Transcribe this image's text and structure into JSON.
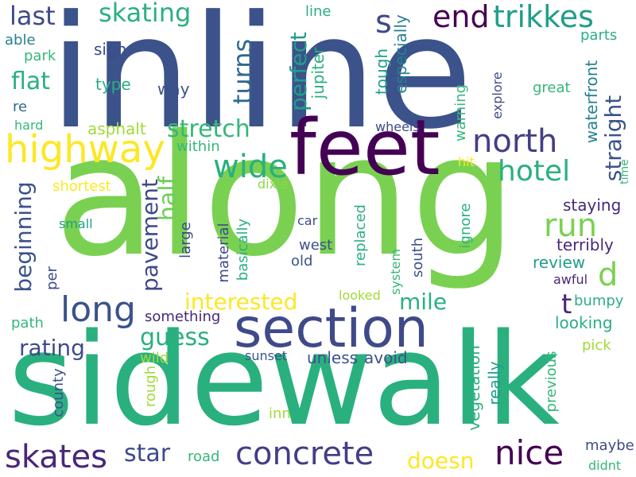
{
  "palette": {
    "dark_purple": "#440154",
    "indigo": "#482878",
    "dark_blue": "#3e4a89",
    "blue": "#31688e",
    "teal": "#26828e",
    "teal_green": "#1f9e89",
    "green": "#35b779",
    "light_green": "#6ece58",
    "lime": "#8fd744",
    "yellow": "#fde725",
    "background": "#ffffff"
  },
  "words": [
    {
      "text": "inline",
      "color": "#3b528b"
    },
    {
      "text": "along",
      "color": "#7ad151"
    },
    {
      "text": "sidewalk",
      "color": "#2ab07f"
    },
    {
      "text": "feet",
      "color": "#440154"
    },
    {
      "text": "section",
      "color": "#3e4a89"
    },
    {
      "text": "highway",
      "color": "#fde725"
    },
    {
      "text": "run",
      "color": "#7ad151"
    },
    {
      "text": "concrete",
      "color": "#433e85"
    },
    {
      "text": "long",
      "color": "#3b528b"
    },
    {
      "text": "skates",
      "color": "#482878"
    },
    {
      "text": "nice",
      "color": "#440154"
    },
    {
      "text": "end",
      "color": "#440154"
    },
    {
      "text": "trikkes",
      "color": "#1f9e89"
    },
    {
      "text": "wide",
      "color": "#2ab07f"
    },
    {
      "text": "north",
      "color": "#433e85"
    },
    {
      "text": "hotel",
      "color": "#2ab07f"
    },
    {
      "text": "skating",
      "color": "#2ab07f"
    },
    {
      "text": "last",
      "color": "#3e4a89"
    },
    {
      "text": "s",
      "color": "#3e4a89"
    },
    {
      "text": "d",
      "color": "#7ad151"
    },
    {
      "text": "t",
      "color": "#482878"
    },
    {
      "text": "flat",
      "color": "#2ab07f"
    },
    {
      "text": "turns",
      "color": "#31688e"
    },
    {
      "text": "perfect",
      "color": "#1f9e89"
    },
    {
      "text": "straight",
      "color": "#3b528b"
    },
    {
      "text": "stretch",
      "color": "#35b779"
    },
    {
      "text": "half",
      "color": "#6ece58"
    },
    {
      "text": "pavement",
      "color": "#3e4a89"
    },
    {
      "text": "interested",
      "color": "#fde725"
    },
    {
      "text": "beginning",
      "color": "#3b528b"
    },
    {
      "text": "mile",
      "color": "#2ab07f"
    },
    {
      "text": "guess",
      "color": "#2ab07f"
    },
    {
      "text": "rating",
      "color": "#3e4a89"
    },
    {
      "text": "star",
      "color": "#3e4a89"
    },
    {
      "text": "doesn",
      "color": "#fde725"
    },
    {
      "text": "jupiter",
      "color": "#2ab07f"
    },
    {
      "text": "tough",
      "color": "#1f9e89"
    },
    {
      "text": "especially",
      "color": "#26828e"
    },
    {
      "text": "waterfront",
      "color": "#26828e"
    },
    {
      "text": "parts",
      "color": "#2ab07f"
    },
    {
      "text": "explore",
      "color": "#3e4a89"
    },
    {
      "text": "great",
      "color": "#35b779"
    },
    {
      "text": "warning",
      "color": "#35b779"
    },
    {
      "text": "wheels",
      "color": "#3e4a89"
    },
    {
      "text": "line",
      "color": "#2ab07f"
    },
    {
      "text": "able",
      "color": "#26828e"
    },
    {
      "text": "park",
      "color": "#35b779"
    },
    {
      "text": "sign",
      "color": "#3e4a89"
    },
    {
      "text": "type",
      "color": "#2ab07f"
    },
    {
      "text": "way",
      "color": "#3b528b"
    },
    {
      "text": "re",
      "color": "#31688e"
    },
    {
      "text": "hard",
      "color": "#35b779"
    },
    {
      "text": "asphalt",
      "color": "#a0da39"
    },
    {
      "text": "within",
      "color": "#35b779"
    },
    {
      "text": "shortest",
      "color": "#fde725"
    },
    {
      "text": "small",
      "color": "#1f9e89"
    },
    {
      "text": "per",
      "color": "#3e4a89"
    },
    {
      "text": "large",
      "color": "#3e4a89"
    },
    {
      "text": "dixie",
      "color": "#8fd744"
    },
    {
      "text": "material",
      "color": "#3e4a89"
    },
    {
      "text": "basically",
      "color": "#2ab07f"
    },
    {
      "text": "car",
      "color": "#3e4a89"
    },
    {
      "text": "west",
      "color": "#3b528b"
    },
    {
      "text": "old",
      "color": "#3b528b"
    },
    {
      "text": "replaced",
      "color": "#2ab07f"
    },
    {
      "text": "south",
      "color": "#3b528b"
    },
    {
      "text": "system",
      "color": "#35b779"
    },
    {
      "text": "ignore",
      "color": "#2ab07f"
    },
    {
      "text": "hit",
      "color": "#fde725"
    },
    {
      "text": "time",
      "color": "#35b779"
    },
    {
      "text": "staying",
      "color": "#482878"
    },
    {
      "text": "terribly",
      "color": "#482878"
    },
    {
      "text": "review",
      "color": "#1f9e89"
    },
    {
      "text": "awful",
      "color": "#482878"
    },
    {
      "text": "bumpy",
      "color": "#2ab07f"
    },
    {
      "text": "looking",
      "color": "#2ab07f"
    },
    {
      "text": "looked",
      "color": "#a0da39"
    },
    {
      "text": "path",
      "color": "#35b779"
    },
    {
      "text": "something",
      "color": "#482878"
    },
    {
      "text": "wild",
      "color": "#a0da39"
    },
    {
      "text": "sunset",
      "color": "#3b528b"
    },
    {
      "text": "unless",
      "color": "#3b528b"
    },
    {
      "text": "avoid",
      "color": "#3b528b"
    },
    {
      "text": "rough",
      "color": "#a0da39"
    },
    {
      "text": "county",
      "color": "#3b528b"
    },
    {
      "text": "inn",
      "color": "#a0da39"
    },
    {
      "text": "vegetation",
      "color": "#2ab07f"
    },
    {
      "text": "really",
      "color": "#1f9e89"
    },
    {
      "text": "previous",
      "color": "#35b779"
    },
    {
      "text": "pick",
      "color": "#a0da39"
    },
    {
      "text": "maybe",
      "color": "#3e4a89"
    },
    {
      "text": "road",
      "color": "#35b779"
    },
    {
      "text": "didnt",
      "color": "#35b779"
    }
  ]
}
